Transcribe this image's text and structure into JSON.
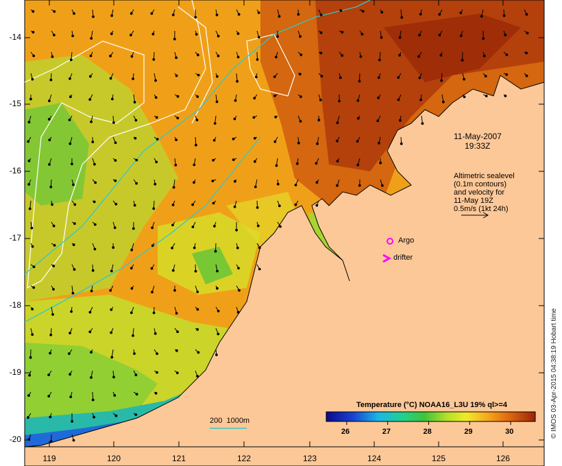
{
  "map": {
    "date": "11-May-2007",
    "time": "19:33Z",
    "altimetry_note": [
      "Altimetric sealevel",
      "(0.1m contours)",
      "and velocity for",
      "11-May 19Z",
      "0.5m/s (1kt 24h)"
    ],
    "markers": {
      "argo_label": "Argo",
      "drifter_label": "drifter"
    },
    "depth_legend": "200  1000m",
    "colorbar": {
      "title": "Temperature (°C) NOAA16_L3U 19% ql>=4",
      "ticks": [
        "26",
        "27",
        "28",
        "29",
        "30"
      ],
      "range": [
        25.5,
        30.6
      ]
    },
    "y_ticks": [
      "-14",
      "-15",
      "-16",
      "-17",
      "-18",
      "-19",
      "-20"
    ],
    "x_ticks": [
      "119",
      "120",
      "121",
      "122",
      "123",
      "124",
      "125",
      "126"
    ],
    "credit": "© IMOS 03-Apr-2015 04:38:19 Hobart time",
    "colors": {
      "land": "#fdc898",
      "contour_sealevel": "#ffffff",
      "contour_depth": "#33c7c7",
      "argo": "#ff00ff",
      "drifter": "#ff00ff"
    }
  }
}
